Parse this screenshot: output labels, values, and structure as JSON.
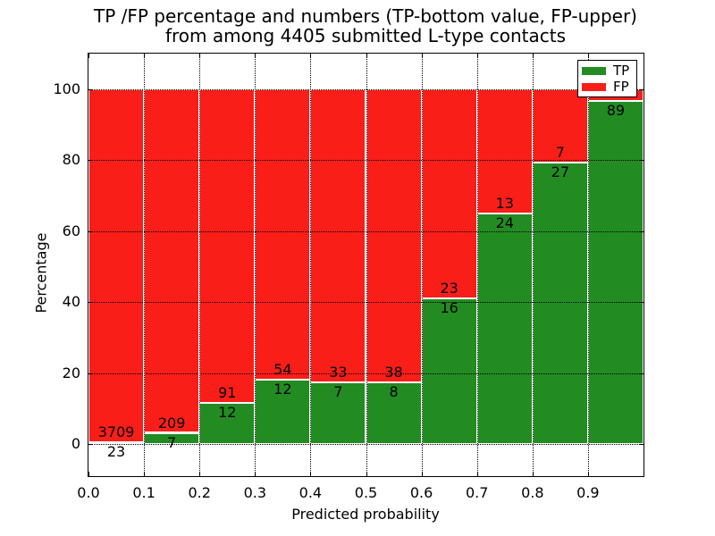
{
  "chart_data": {
    "type": "bar",
    "stacked": true,
    "title_line1": "TP /FP percentage and numbers (TP-bottom value, FP-upper)",
    "title_line2": "from among 4405 submitted L-type contacts",
    "xlabel": "Predicted probability",
    "ylabel": "Percentage",
    "xlim": [
      0.0,
      1.0
    ],
    "ylim": [
      -9,
      110
    ],
    "grid": true,
    "x_ticks": [
      {
        "label": "0.0",
        "value": 0.0
      },
      {
        "label": "0.1",
        "value": 0.1
      },
      {
        "label": "0.2",
        "value": 0.2
      },
      {
        "label": "0.3",
        "value": 0.3
      },
      {
        "label": "0.4",
        "value": 0.4
      },
      {
        "label": "0.5",
        "value": 0.5
      },
      {
        "label": "0.6",
        "value": 0.6
      },
      {
        "label": "0.7",
        "value": 0.7
      },
      {
        "label": "0.8",
        "value": 0.8
      },
      {
        "label": "0.9",
        "value": 0.9
      }
    ],
    "y_ticks": [
      {
        "label": "0",
        "value": 0
      },
      {
        "label": "20",
        "value": 20
      },
      {
        "label": "40",
        "value": 40
      },
      {
        "label": "60",
        "value": 60
      },
      {
        "label": "80",
        "value": 80
      },
      {
        "label": "100",
        "value": 100
      }
    ],
    "legend": {
      "position": "upper-right",
      "entries": [
        {
          "label": "TP",
          "color": "#228C23"
        },
        {
          "label": "FP",
          "color": "#FA1E19"
        }
      ]
    },
    "colors": {
      "tp": "#228C23",
      "fp": "#FA1E19",
      "grid": "#000000",
      "background": "#ffffff"
    },
    "bins": [
      {
        "x0": 0.0,
        "x1": 0.1,
        "tp_count": "23",
        "fp_count": "3709",
        "tp_pct": 0.6
      },
      {
        "x0": 0.1,
        "x1": 0.2,
        "tp_count": "7",
        "fp_count": "209",
        "tp_pct": 3.2
      },
      {
        "x0": 0.2,
        "x1": 0.3,
        "tp_count": "12",
        "fp_count": "91",
        "tp_pct": 11.7
      },
      {
        "x0": 0.3,
        "x1": 0.4,
        "tp_count": "12",
        "fp_count": "54",
        "tp_pct": 18.2
      },
      {
        "x0": 0.4,
        "x1": 0.5,
        "tp_count": "7",
        "fp_count": "33",
        "tp_pct": 17.5
      },
      {
        "x0": 0.5,
        "x1": 0.6,
        "tp_count": "8",
        "fp_count": "38",
        "tp_pct": 17.4
      },
      {
        "x0": 0.6,
        "x1": 0.7,
        "tp_count": "16",
        "fp_count": "23",
        "tp_pct": 41.0
      },
      {
        "x0": 0.7,
        "x1": 0.8,
        "tp_count": "24",
        "fp_count": "13",
        "tp_pct": 64.9
      },
      {
        "x0": 0.8,
        "x1": 0.9,
        "tp_count": "27",
        "fp_count": null,
        "tp_pct": 79.4
      },
      {
        "x0": 0.9,
        "x1": 1.0,
        "tp_count": "89",
        "fp_count": null,
        "tp_pct": 96.7
      }
    ],
    "bin9_fp_label_visible": "7"
  }
}
